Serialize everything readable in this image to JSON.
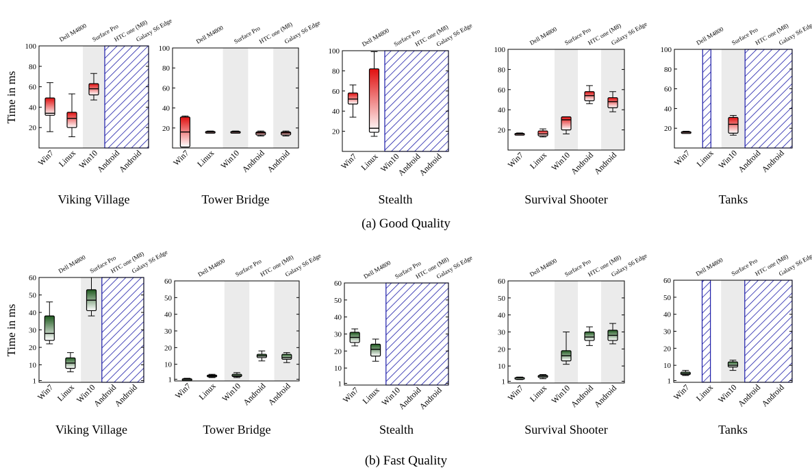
{
  "y_axis_label": "Time in ms",
  "devices": [
    "Dell M4800",
    "Surface Pro",
    "HTC one (M8)",
    "Galaxy S6 Edge"
  ],
  "os_labels": [
    "Win7",
    "Linux",
    "Win10",
    "Android",
    "Android"
  ],
  "captions": {
    "good": "(a) Good Quality",
    "fast": "(b) Fast Quality"
  },
  "colors": {
    "good_dark": "#e01010",
    "fast_dark": "#1f5a1f",
    "box_light": "#ffffff",
    "unavailable_hatch": "#1a1aa8",
    "device_shade": "#ebebeb"
  },
  "legend": {
    "hatched": "not supported on this platform"
  },
  "chart_data": [
    {
      "type": "box",
      "row": "good",
      "title": "Viking Village",
      "ylim": [
        0,
        100
      ],
      "yticks": [
        20,
        40,
        60,
        80,
        100
      ],
      "unsupported": [
        "HTC one (M8)",
        "Galaxy S6 Edge"
      ],
      "boxes": [
        {
          "os": "Win7",
          "min": 16,
          "q1": 32,
          "median": 34,
          "q3": 49,
          "max": 64
        },
        {
          "os": "Linux",
          "min": 11,
          "q1": 20,
          "median": 29,
          "q3": 35,
          "max": 53
        },
        {
          "os": "Win10",
          "min": 47,
          "q1": 52,
          "median": 58,
          "q3": 63,
          "max": 73
        }
      ]
    },
    {
      "type": "box",
      "row": "good",
      "title": "Tower Bridge",
      "ylim": [
        0,
        100
      ],
      "yticks": [
        20,
        40,
        60,
        80,
        100
      ],
      "unsupported": [],
      "boxes": [
        {
          "os": "Win7",
          "min": 1,
          "q1": 1,
          "median": 16,
          "q3": 31,
          "max": 32
        },
        {
          "os": "Linux",
          "min": 15,
          "q1": 15.5,
          "median": 16,
          "q3": 16.5,
          "max": 17
        },
        {
          "os": "Win10",
          "min": 15,
          "q1": 15.5,
          "median": 16,
          "q3": 16.5,
          "max": 17
        },
        {
          "os": "Android",
          "min": 12,
          "q1": 13,
          "median": 15,
          "q3": 16,
          "max": 17
        },
        {
          "os": "Android",
          "min": 12,
          "q1": 13,
          "median": 15,
          "q3": 16,
          "max": 17
        }
      ]
    },
    {
      "type": "box",
      "row": "good",
      "title": "Stealth",
      "ylim": [
        0,
        100
      ],
      "yticks": [
        20,
        40,
        60,
        80,
        100
      ],
      "unsupported": [
        "Surface Pro",
        "HTC one (M8)",
        "Galaxy S6 Edge"
      ],
      "boxes": [
        {
          "os": "Win7",
          "min": 34,
          "q1": 47,
          "median": 52,
          "q3": 58,
          "max": 66
        },
        {
          "os": "Linux",
          "min": 15,
          "q1": 19,
          "median": 23,
          "q3": 82,
          "max": 99
        }
      ]
    },
    {
      "type": "box",
      "row": "good",
      "title": "Survival Shooter",
      "ylim": [
        0,
        100
      ],
      "yticks": [
        20,
        40,
        60,
        80,
        100
      ],
      "unsupported": [],
      "boxes": [
        {
          "os": "Win7",
          "min": 15.5,
          "q1": 16,
          "median": 16,
          "q3": 16.5,
          "max": 17
        },
        {
          "os": "Linux",
          "min": 13,
          "q1": 14,
          "median": 16,
          "q3": 19,
          "max": 21
        },
        {
          "os": "Win10",
          "min": 16,
          "q1": 20,
          "median": 30,
          "q3": 33,
          "max": 33
        },
        {
          "os": "Android",
          "min": 46,
          "q1": 49,
          "median": 54,
          "q3": 58,
          "max": 64
        },
        {
          "os": "Android",
          "min": 38,
          "q1": 42,
          "median": 48,
          "q3": 52,
          "max": 58
        }
      ]
    },
    {
      "type": "box",
      "row": "good",
      "title": "Tanks",
      "ylim": [
        0,
        100
      ],
      "yticks": [
        20,
        40,
        60,
        80,
        100
      ],
      "unsupported": [
        "Linux",
        "HTC one (M8)",
        "Galaxy S6 Edge"
      ],
      "boxes": [
        {
          "os": "Win7",
          "min": 15.5,
          "q1": 16,
          "median": 16,
          "q3": 16.5,
          "max": 17
        },
        {
          "os": "Win10",
          "min": 13,
          "q1": 15,
          "median": 24,
          "q3": 31,
          "max": 33
        }
      ]
    },
    {
      "type": "box",
      "row": "fast",
      "title": "Viking Village",
      "ylim": [
        0,
        60
      ],
      "yticks": [
        1,
        10,
        20,
        30,
        40,
        50,
        60
      ],
      "unsupported": [
        "HTC one (M8)",
        "Galaxy S6 Edge"
      ],
      "boxes": [
        {
          "os": "Win7",
          "min": 22,
          "q1": 24,
          "median": 28,
          "q3": 38,
          "max": 46
        },
        {
          "os": "Linux",
          "min": 6,
          "q1": 8,
          "median": 11,
          "q3": 14,
          "max": 17
        },
        {
          "os": "Win10",
          "min": 38,
          "q1": 41,
          "median": 47,
          "q3": 53,
          "max": 60
        }
      ]
    },
    {
      "type": "box",
      "row": "fast",
      "title": "Tower Bridge",
      "ylim": [
        0,
        60
      ],
      "yticks": [
        1,
        10,
        20,
        30,
        40,
        50,
        60
      ],
      "unsupported": [],
      "boxes": [
        {
          "os": "Win7",
          "min": 0.5,
          "q1": 0.8,
          "median": 1,
          "q3": 1.3,
          "max": 1.6
        },
        {
          "os": "Linux",
          "min": 2,
          "q1": 2.5,
          "median": 3,
          "q3": 3.5,
          "max": 4
        },
        {
          "os": "Win10",
          "min": 2,
          "q1": 2.6,
          "median": 3,
          "q3": 4,
          "max": 5
        },
        {
          "os": "Android",
          "min": 12,
          "q1": 14,
          "median": 15,
          "q3": 16,
          "max": 18
        },
        {
          "os": "Android",
          "min": 11,
          "q1": 13,
          "median": 14,
          "q3": 16,
          "max": 17
        }
      ]
    },
    {
      "type": "box",
      "row": "fast",
      "title": "Stealth",
      "ylim": [
        0,
        60
      ],
      "yticks": [
        1,
        10,
        20,
        30,
        40,
        50,
        60
      ],
      "unsupported": [
        "Surface Pro",
        "HTC one (M8)",
        "Galaxy S6 Edge"
      ],
      "boxes": [
        {
          "os": "Win7",
          "min": 23,
          "q1": 25,
          "median": 28,
          "q3": 31,
          "max": 33
        },
        {
          "os": "Linux",
          "min": 14,
          "q1": 17,
          "median": 21,
          "q3": 24,
          "max": 27
        }
      ]
    },
    {
      "type": "box",
      "row": "fast",
      "title": "Survival Shooter",
      "ylim": [
        0,
        60
      ],
      "yticks": [
        1,
        10,
        20,
        30,
        40,
        50,
        60
      ],
      "unsupported": [],
      "boxes": [
        {
          "os": "Win7",
          "min": 2,
          "q1": 2.5,
          "median": 3,
          "q3": 3.2,
          "max": 3.5
        },
        {
          "os": "Linux",
          "min": 2.5,
          "q1": 3.2,
          "median": 4,
          "q3": 4.5,
          "max": 5
        },
        {
          "os": "Win10",
          "min": 11,
          "q1": 13,
          "median": 16,
          "q3": 19,
          "max": 30
        },
        {
          "os": "Android",
          "min": 22,
          "q1": 25,
          "median": 27,
          "q3": 30,
          "max": 33
        },
        {
          "os": "Android",
          "min": 23,
          "q1": 25,
          "median": 28,
          "q3": 31,
          "max": 35
        }
      ]
    },
    {
      "type": "box",
      "row": "fast",
      "title": "Tanks",
      "ylim": [
        0,
        60
      ],
      "yticks": [
        1,
        10,
        20,
        30,
        40,
        50,
        60
      ],
      "unsupported": [
        "Linux",
        "HTC one (M8)",
        "Galaxy S6 Edge"
      ],
      "boxes": [
        {
          "os": "Win7",
          "min": 4,
          "q1": 4.5,
          "median": 5,
          "q3": 6,
          "max": 7
        },
        {
          "os": "Win10",
          "min": 7,
          "q1": 9,
          "median": 10,
          "q3": 12,
          "max": 13
        }
      ]
    }
  ]
}
